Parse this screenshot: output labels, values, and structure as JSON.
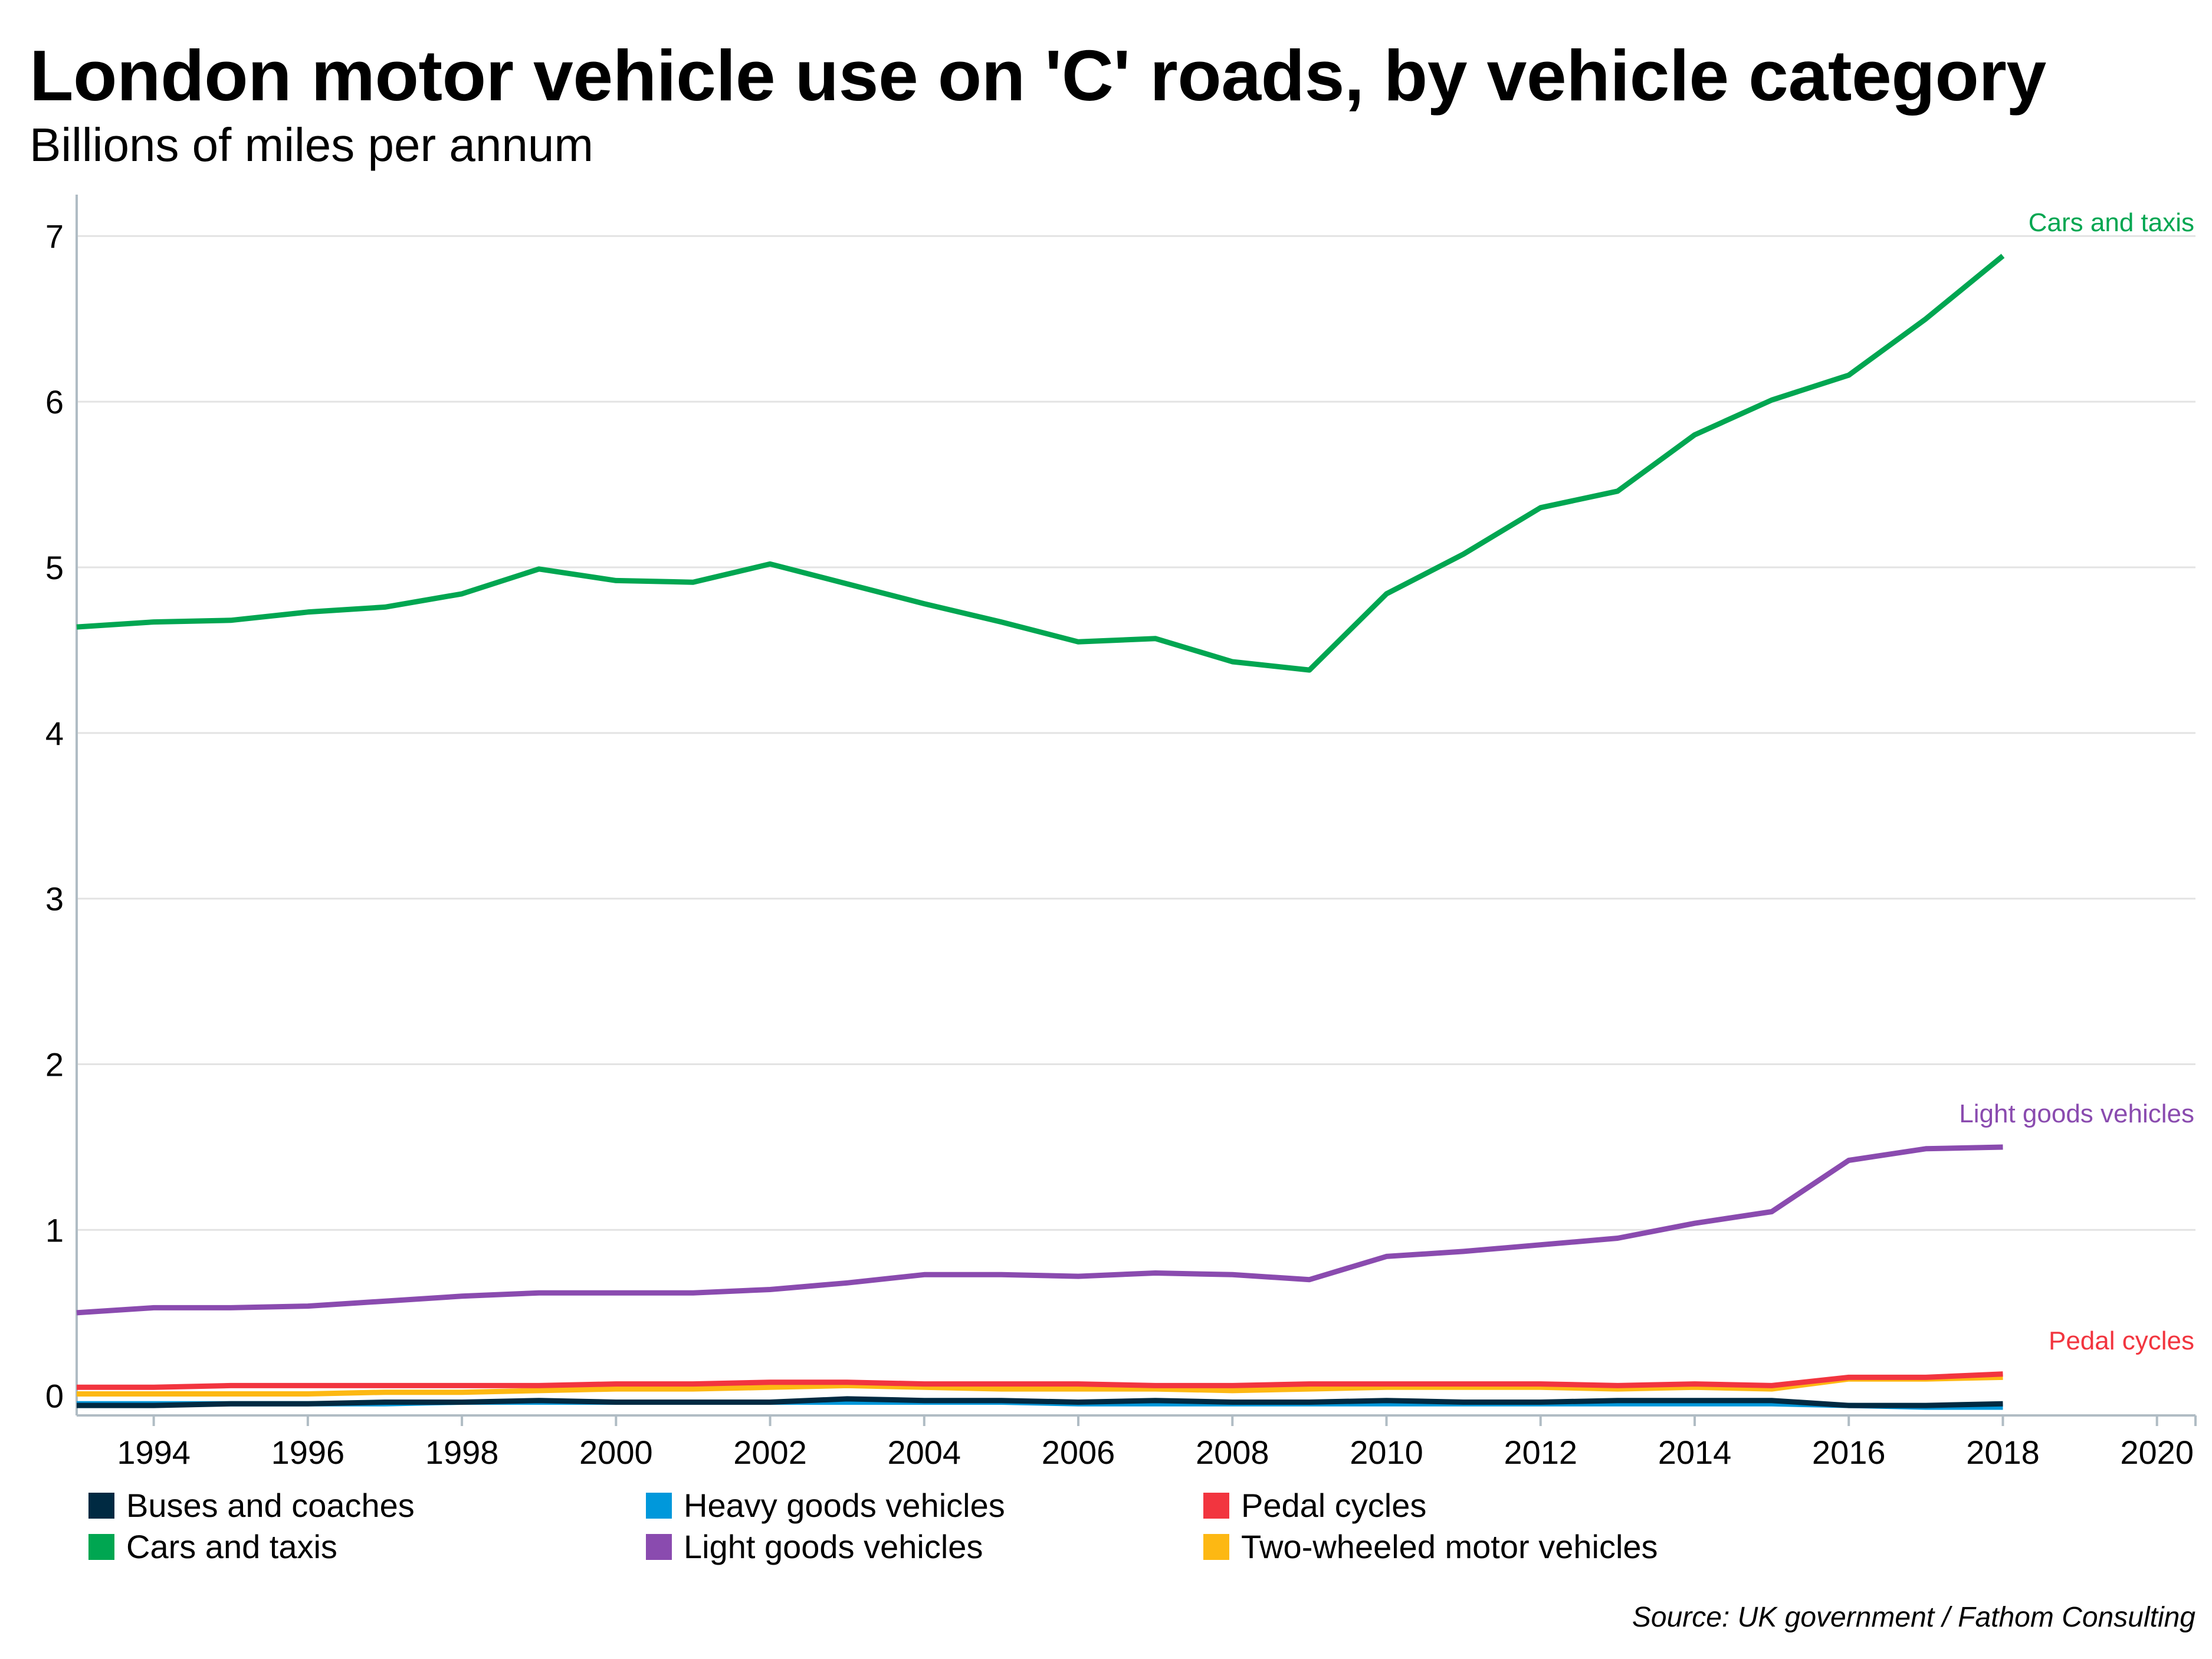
{
  "chart_data": {
    "type": "line",
    "title": "London motor vehicle use on 'C' roads, by vehicle category",
    "subtitle": "Billions of miles per annum",
    "xlabel": "",
    "ylabel": "",
    "xlim": [
      1993,
      2020.5
    ],
    "ylim": [
      -0.12,
      7.25
    ],
    "x_ticks": [
      1994,
      1996,
      1998,
      2000,
      2002,
      2004,
      2006,
      2008,
      2010,
      2012,
      2014,
      2016,
      2018,
      2020
    ],
    "y_ticks": [
      0,
      1,
      2,
      3,
      4,
      5,
      6,
      7
    ],
    "grid": "horizontal",
    "legend_position": "bottom",
    "source": "Source: UK government / Fathom Consulting",
    "x": [
      1993,
      1994,
      1995,
      1996,
      1997,
      1998,
      1999,
      2000,
      2001,
      2002,
      2003,
      2004,
      2005,
      2006,
      2007,
      2008,
      2009,
      2010,
      2011,
      2012,
      2013,
      2014,
      2015,
      2016,
      2017,
      2018
    ],
    "series": [
      {
        "name": "Two-wheeled motor vehicles",
        "color": "#FDB813",
        "values": [
          0.01,
          0.01,
          0.01,
          0.01,
          0.02,
          0.02,
          0.03,
          0.04,
          0.04,
          0.05,
          0.06,
          0.05,
          0.04,
          0.04,
          0.04,
          0.03,
          0.04,
          0.05,
          0.05,
          0.05,
          0.04,
          0.05,
          0.04,
          0.1,
          0.1,
          0.11
        ]
      },
      {
        "name": "Pedal cycles",
        "color": "#F2353F",
        "label": "Pedal cycles",
        "values": [
          0.05,
          0.05,
          0.06,
          0.06,
          0.06,
          0.06,
          0.06,
          0.07,
          0.07,
          0.08,
          0.08,
          0.07,
          0.07,
          0.07,
          0.06,
          0.06,
          0.07,
          0.07,
          0.07,
          0.07,
          0.06,
          0.07,
          0.06,
          0.11,
          0.11,
          0.13
        ]
      },
      {
        "name": "Heavy goods vehicles",
        "color": "#0098DB",
        "values": [
          -0.05,
          -0.05,
          -0.05,
          -0.05,
          -0.05,
          -0.04,
          -0.04,
          -0.04,
          -0.04,
          -0.04,
          -0.04,
          -0.04,
          -0.04,
          -0.05,
          -0.05,
          -0.05,
          -0.05,
          -0.05,
          -0.05,
          -0.05,
          -0.05,
          -0.05,
          -0.05,
          -0.06,
          -0.07,
          -0.07
        ]
      },
      {
        "name": "Buses and coaches",
        "color": "#002A42",
        "values": [
          -0.06,
          -0.06,
          -0.05,
          -0.05,
          -0.04,
          -0.04,
          -0.03,
          -0.04,
          -0.04,
          -0.04,
          -0.02,
          -0.03,
          -0.03,
          -0.04,
          -0.03,
          -0.04,
          -0.04,
          -0.03,
          -0.04,
          -0.04,
          -0.03,
          -0.03,
          -0.03,
          -0.06,
          -0.06,
          -0.05
        ]
      },
      {
        "name": "Light goods vehicles",
        "color": "#8A4BAF",
        "label": "Light goods vehicles",
        "values": [
          0.5,
          0.53,
          0.53,
          0.54,
          0.57,
          0.6,
          0.62,
          0.62,
          0.62,
          0.64,
          0.68,
          0.73,
          0.73,
          0.72,
          0.74,
          0.73,
          0.7,
          0.84,
          0.87,
          0.91,
          0.95,
          1.04,
          1.11,
          1.42,
          1.49,
          1.5
        ]
      },
      {
        "name": "Cars and taxis",
        "color": "#00A651",
        "label": "Cars and taxis",
        "values": [
          4.64,
          4.67,
          4.68,
          4.73,
          4.76,
          4.84,
          4.99,
          4.92,
          4.91,
          5.02,
          4.9,
          4.78,
          4.67,
          4.55,
          4.57,
          4.43,
          4.38,
          4.84,
          5.08,
          5.36,
          5.46,
          5.8,
          6.01,
          6.16,
          6.5,
          6.88
        ]
      }
    ],
    "legend": [
      {
        "name": "Buses and coaches",
        "color": "#002A42"
      },
      {
        "name": "Heavy goods vehicles",
        "color": "#0098DB"
      },
      {
        "name": "Pedal cycles",
        "color": "#F2353F"
      },
      {
        "name": "Cars and taxis",
        "color": "#00A651"
      },
      {
        "name": "Light goods vehicles",
        "color": "#8A4BAF"
      },
      {
        "name": "Two-wheeled motor vehicles",
        "color": "#FDB813"
      }
    ]
  }
}
